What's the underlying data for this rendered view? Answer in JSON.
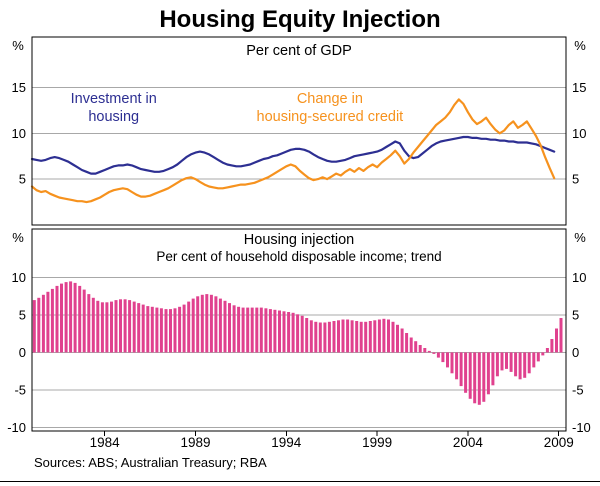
{
  "title": "Housing Equity Injection",
  "footer": {
    "sources": "Sources: ABS; Australian Treasury; RBA"
  },
  "colors": {
    "investment": "#2d2f92",
    "credit": "#f6921e",
    "bars": "#e0418e",
    "grid": "#a8a8a8",
    "axis": "#000000"
  },
  "chart_data": [
    {
      "type": "line",
      "panel": "top",
      "title": "Per cent of GDP",
      "unit": "%",
      "ylim": [
        0,
        20.5
      ],
      "yticks": [
        5,
        10,
        15
      ],
      "x_start": 1980,
      "x_step": 0.25,
      "series": [
        {
          "name": "Investment in housing",
          "label_lines": [
            "Investment in",
            "housing"
          ],
          "color_key": "investment",
          "values": [
            7.2,
            7.1,
            7.0,
            7.1,
            7.3,
            7.4,
            7.3,
            7.1,
            6.9,
            6.6,
            6.3,
            6.0,
            5.8,
            5.6,
            5.6,
            5.8,
            6.0,
            6.2,
            6.4,
            6.5,
            6.5,
            6.6,
            6.5,
            6.3,
            6.1,
            6.0,
            5.9,
            5.8,
            5.8,
            5.9,
            6.1,
            6.3,
            6.6,
            7.0,
            7.4,
            7.7,
            7.9,
            8.0,
            7.9,
            7.7,
            7.4,
            7.1,
            6.8,
            6.6,
            6.5,
            6.4,
            6.4,
            6.5,
            6.6,
            6.8,
            7.0,
            7.2,
            7.3,
            7.5,
            7.6,
            7.8,
            8.0,
            8.2,
            8.3,
            8.3,
            8.2,
            8.0,
            7.7,
            7.4,
            7.2,
            7.0,
            6.9,
            6.9,
            7.0,
            7.1,
            7.3,
            7.5,
            7.6,
            7.7,
            7.8,
            7.9,
            8.0,
            8.2,
            8.5,
            8.8,
            9.1,
            8.9,
            8.1,
            7.5,
            7.3,
            7.4,
            7.8,
            8.2,
            8.6,
            8.9,
            9.1,
            9.2,
            9.3,
            9.4,
            9.5,
            9.6,
            9.6,
            9.5,
            9.5,
            9.4,
            9.4,
            9.3,
            9.3,
            9.2,
            9.2,
            9.1,
            9.1,
            9.0,
            9.0,
            9.0,
            8.9,
            8.8,
            8.6,
            8.4,
            8.2,
            8.0
          ]
        },
        {
          "name": "Change in housing-secured credit",
          "label_lines": [
            "Change in",
            "housing-secured credit"
          ],
          "color_key": "credit",
          "values": [
            4.2,
            3.8,
            3.6,
            3.7,
            3.4,
            3.2,
            3.0,
            2.9,
            2.8,
            2.7,
            2.6,
            2.6,
            2.5,
            2.6,
            2.8,
            3.0,
            3.3,
            3.6,
            3.8,
            3.9,
            4.0,
            3.9,
            3.6,
            3.3,
            3.1,
            3.1,
            3.2,
            3.4,
            3.6,
            3.8,
            4.0,
            4.3,
            4.6,
            4.9,
            5.1,
            5.2,
            5.0,
            4.7,
            4.4,
            4.2,
            4.1,
            4.0,
            4.0,
            4.1,
            4.2,
            4.3,
            4.4,
            4.4,
            4.5,
            4.6,
            4.8,
            5.0,
            5.2,
            5.5,
            5.8,
            6.1,
            6.4,
            6.6,
            6.4,
            5.9,
            5.5,
            5.1,
            4.9,
            5.0,
            5.2,
            5.0,
            5.3,
            5.6,
            5.4,
            5.8,
            6.1,
            5.8,
            6.2,
            5.9,
            6.3,
            6.6,
            6.3,
            6.8,
            7.2,
            7.6,
            8.1,
            7.5,
            6.7,
            7.2,
            7.9,
            8.5,
            9.1,
            9.7,
            10.3,
            10.9,
            11.3,
            11.7,
            12.3,
            13.1,
            13.7,
            13.2,
            12.3,
            11.5,
            11.0,
            11.3,
            11.7,
            11.0,
            10.4,
            10.0,
            10.3,
            10.9,
            11.3,
            10.6,
            10.9,
            11.3,
            10.5,
            9.7,
            8.7,
            7.4,
            6.2,
            5.1
          ]
        }
      ]
    },
    {
      "type": "bar",
      "panel": "bottom",
      "title": "Housing injection",
      "subtitle": "Per cent of household disposable income; trend",
      "unit": "%",
      "ylim": [
        -10.5,
        16.5
      ],
      "yticks": [
        -10,
        -5,
        0,
        5,
        10
      ],
      "xticks": [
        1984,
        1989,
        1994,
        1999,
        2004,
        2009
      ],
      "x_start": 1980,
      "x_step": 0.25,
      "values": [
        7.0,
        7.3,
        7.7,
        8.1,
        8.5,
        8.9,
        9.2,
        9.4,
        9.5,
        9.3,
        8.9,
        8.4,
        7.8,
        7.3,
        6.9,
        6.7,
        6.7,
        6.8,
        7.0,
        7.1,
        7.1,
        7.0,
        6.8,
        6.6,
        6.4,
        6.2,
        6.1,
        6.0,
        5.9,
        5.8,
        5.8,
        5.9,
        6.1,
        6.4,
        6.8,
        7.2,
        7.5,
        7.7,
        7.8,
        7.7,
        7.5,
        7.2,
        6.9,
        6.6,
        6.3,
        6.1,
        6.0,
        6.0,
        6.0,
        6.0,
        6.0,
        5.9,
        5.8,
        5.7,
        5.6,
        5.5,
        5.4,
        5.3,
        5.1,
        4.9,
        4.6,
        4.3,
        4.1,
        4.0,
        4.0,
        4.1,
        4.2,
        4.3,
        4.4,
        4.4,
        4.3,
        4.2,
        4.1,
        4.1,
        4.2,
        4.3,
        4.4,
        4.5,
        4.4,
        4.1,
        3.7,
        3.2,
        2.6,
        2.0,
        1.5,
        1.0,
        0.6,
        0.2,
        -0.2,
        -0.7,
        -1.3,
        -2.0,
        -2.8,
        -3.6,
        -4.5,
        -5.4,
        -6.2,
        -6.8,
        -7.0,
        -6.6,
        -5.6,
        -4.4,
        -3.2,
        -2.4,
        -2.2,
        -2.6,
        -3.2,
        -3.6,
        -3.4,
        -2.8,
        -2.0,
        -1.2,
        -0.4,
        0.6,
        1.8,
        3.2,
        4.6
      ]
    }
  ]
}
